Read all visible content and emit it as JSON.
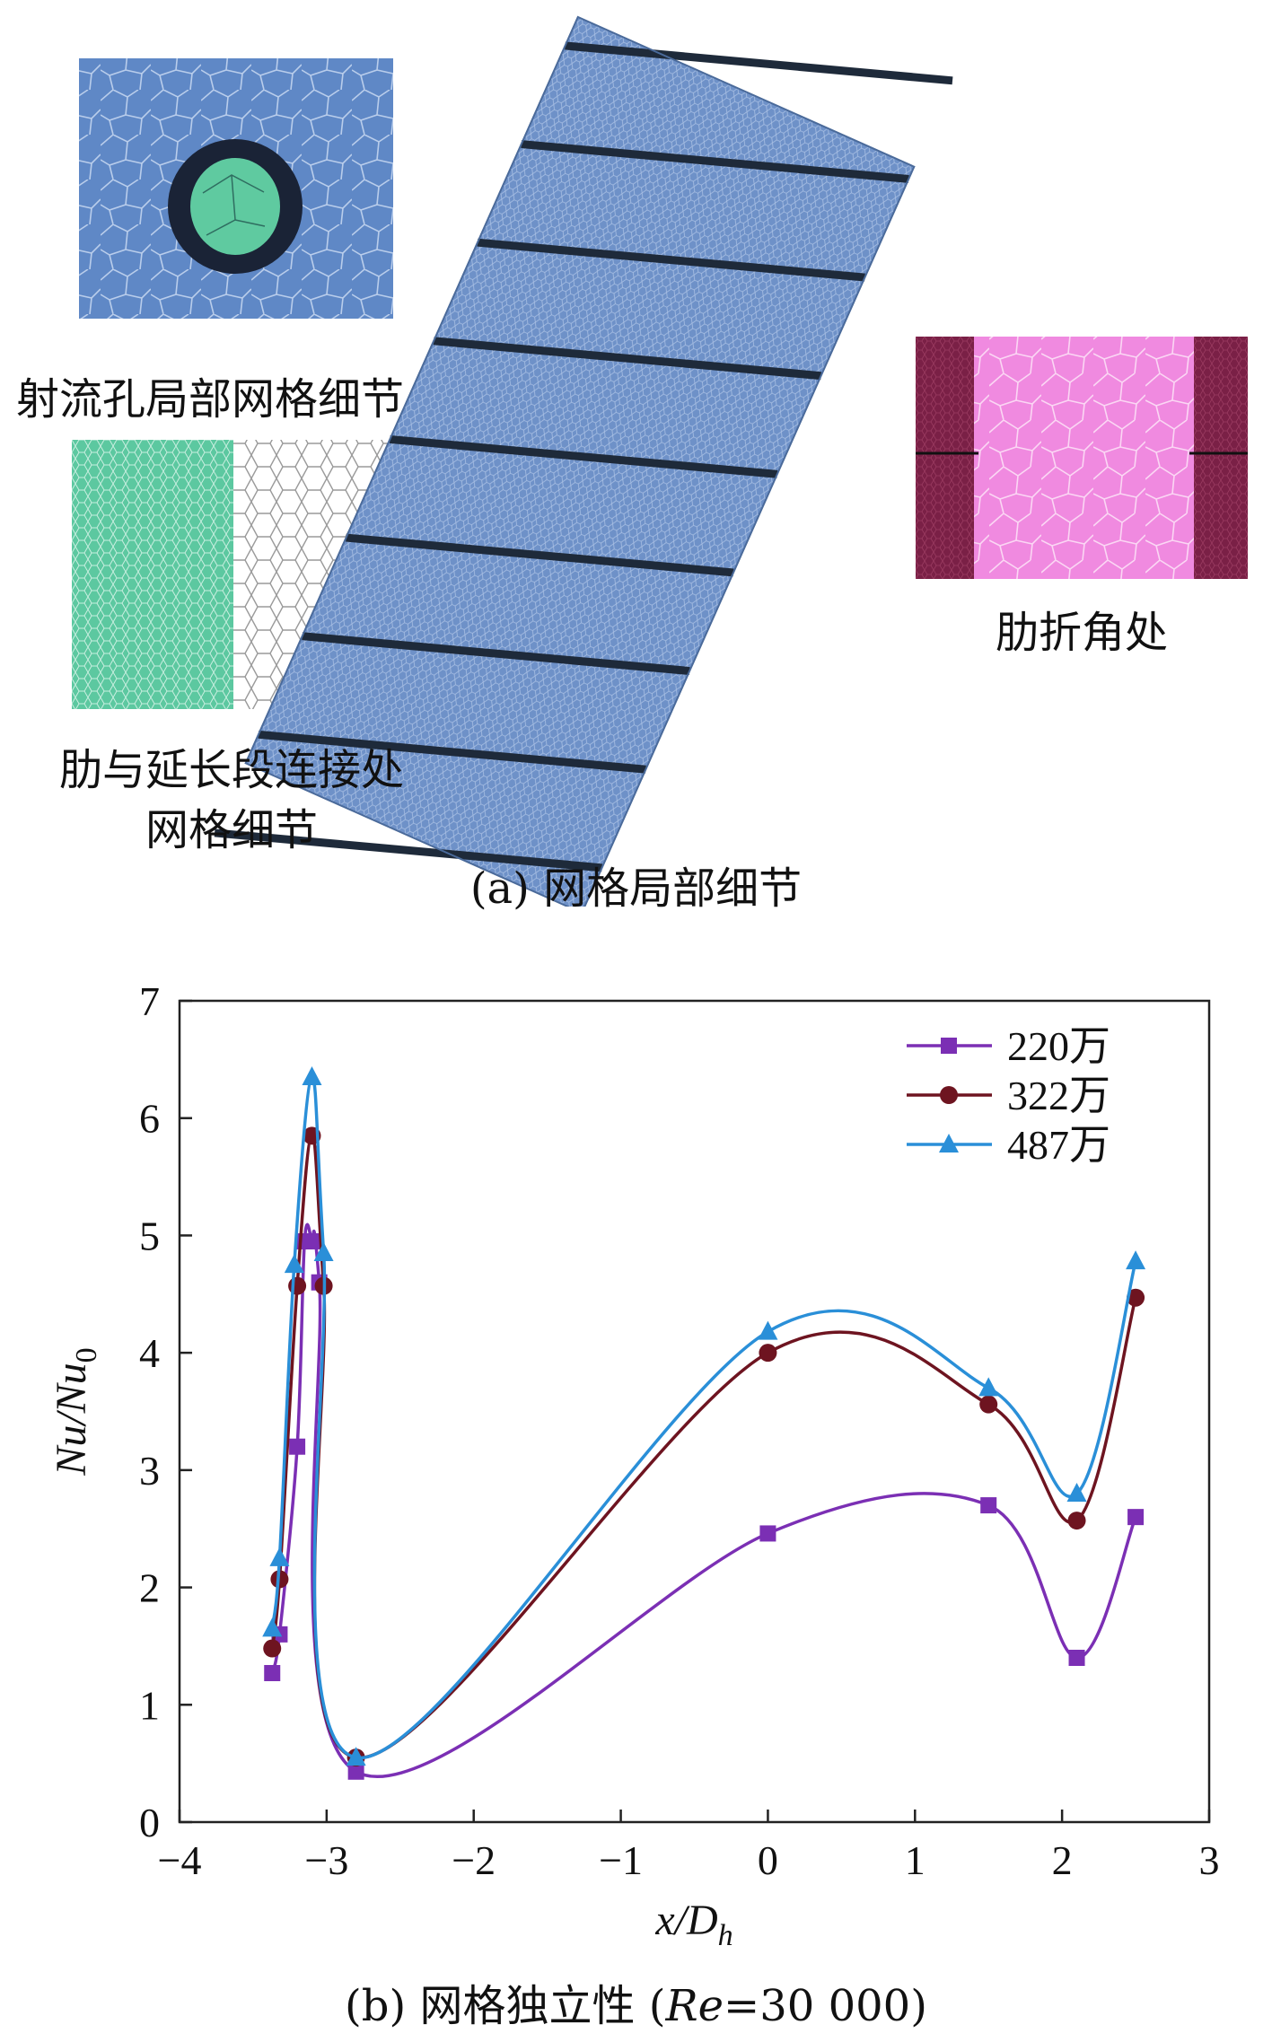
{
  "figure_a": {
    "caption": "(a) 网格局部细节",
    "labels": {
      "jet_hole": "射流孔局部网格细节",
      "rib_junction_line1": "肋与延长段连接处",
      "rib_junction_line2": "网格细节",
      "rib_corner": "肋折角处"
    },
    "colors": {
      "mesh_blue": "#5f88c6",
      "hole_green": "#5fcaa0",
      "junction_green": "#5cc8a0",
      "rib_pink": "#f08ae0",
      "rib_maroon": "#7a2046"
    }
  },
  "figure_b": {
    "caption_prefix": "(b) 网格独立性 (",
    "caption_re": "Re",
    "caption_suffix": "=30 000)"
  },
  "chart_data": {
    "type": "line",
    "xlabel": "x/D_h",
    "ylabel": "Nu/Nu_0",
    "xlim": [
      -4,
      3
    ],
    "ylim": [
      0,
      7
    ],
    "xticks": [
      "−4",
      "−3",
      "−2",
      "−1",
      "0",
      "1",
      "2",
      "3"
    ],
    "yticks": [
      "0",
      "1",
      "2",
      "3",
      "4",
      "5",
      "6",
      "7"
    ],
    "legend_position": "top-right",
    "series": [
      {
        "name": "220万",
        "color": "#7b2fb4",
        "marker": "square",
        "x": [
          -3.37,
          -3.32,
          -3.2,
          -3.15,
          -3.1,
          -3.05,
          -2.8,
          0,
          1.5,
          2.1,
          2.5
        ],
        "y": [
          1.27,
          1.6,
          3.2,
          4.95,
          4.95,
          4.6,
          0.43,
          2.46,
          2.7,
          1.4,
          2.6
        ]
      },
      {
        "name": "322万",
        "color": "#6e1420",
        "marker": "circle",
        "x": [
          -3.37,
          -3.32,
          -3.2,
          -3.1,
          -3.02,
          -2.8,
          0,
          1.5,
          2.1,
          2.5
        ],
        "y": [
          1.48,
          2.07,
          4.57,
          5.85,
          4.57,
          0.55,
          4.0,
          3.56,
          2.57,
          4.47
        ]
      },
      {
        "name": "487万",
        "color": "#2a8fd8",
        "marker": "triangle",
        "x": [
          -3.37,
          -3.32,
          -3.22,
          -3.1,
          -3.02,
          -2.8,
          0,
          1.5,
          2.1,
          2.5
        ],
        "y": [
          1.65,
          2.25,
          4.75,
          6.35,
          4.85,
          0.55,
          4.18,
          3.7,
          2.8,
          4.78
        ]
      }
    ]
  }
}
